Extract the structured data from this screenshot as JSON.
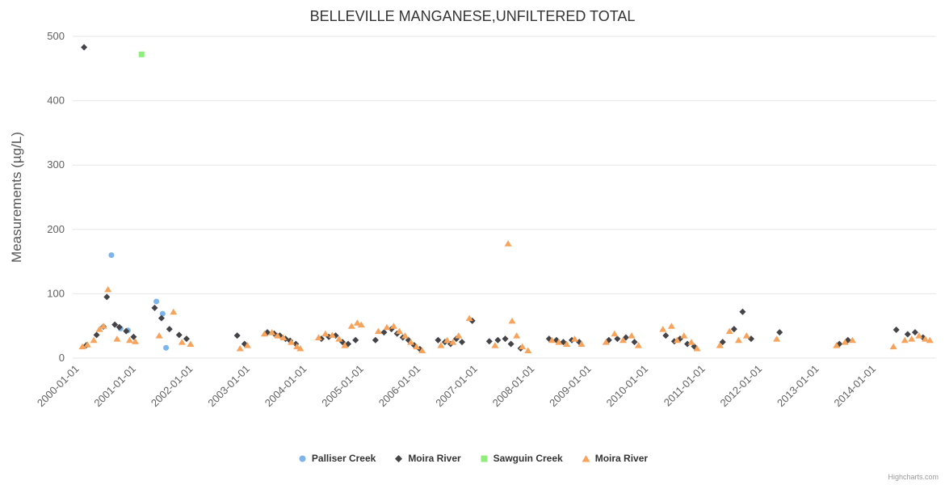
{
  "title": "BELLEVILLE MANGANESE,UNFILTERED TOTAL",
  "credits": "Highcharts.com",
  "yAxis": {
    "title": "Measurements (µg/L)",
    "ticks": [
      0,
      100,
      200,
      300,
      400,
      500
    ]
  },
  "xAxis": {
    "tick_labels": [
      "2000-01-01",
      "2001-01-01",
      "2002-01-01",
      "2003-01-01",
      "2004-01-01",
      "2005-01-01",
      "2006-01-01",
      "2007-01-01",
      "2008-01-01",
      "2009-01-01",
      "2010-01-01",
      "2011-01-01",
      "2012-01-01",
      "2013-01-01",
      "2014-01-01"
    ]
  },
  "colors": {
    "grid": "#e6e6e6",
    "axis_label": "#606060",
    "title_text": "#333333",
    "axis_title_text": "#555555",
    "legend_text": "#333333",
    "credits_text": "#999999"
  },
  "chart_data": {
    "type": "scatter",
    "title": "BELLEVILLE MANGANESE,UNFILTERED TOTAL",
    "xlabel": "",
    "ylabel": "Measurements (µg/L)",
    "ylim": [
      0,
      500
    ],
    "xlim": [
      1999.88,
      2015.05
    ],
    "grid": "horizontal-only",
    "legend_position": "bottom",
    "x_unit": "decimal-year",
    "series": [
      {
        "name": "Palliser Creek",
        "marker": "circle",
        "color": "#7cb5ec",
        "points": [
          [
            2000.56,
            160
          ],
          [
            2000.72,
            46
          ],
          [
            2000.85,
            43
          ],
          [
            2001.35,
            88
          ],
          [
            2001.46,
            69
          ],
          [
            2001.52,
            16
          ]
        ]
      },
      {
        "name": "Moira River",
        "marker": "diamond",
        "color": "#434348",
        "points": [
          [
            2000.08,
            483
          ],
          [
            2000.12,
            20
          ],
          [
            2000.3,
            36
          ],
          [
            2000.42,
            49
          ],
          [
            2000.48,
            95
          ],
          [
            2000.62,
            52
          ],
          [
            2000.7,
            48
          ],
          [
            2000.82,
            42
          ],
          [
            2000.95,
            33
          ],
          [
            2001.32,
            78
          ],
          [
            2001.44,
            62
          ],
          [
            2001.58,
            45
          ],
          [
            2001.75,
            36
          ],
          [
            2001.88,
            30
          ],
          [
            2002.77,
            35
          ],
          [
            2002.9,
            22
          ],
          [
            2003.3,
            40
          ],
          [
            2003.42,
            38
          ],
          [
            2003.52,
            35
          ],
          [
            2003.62,
            30
          ],
          [
            2003.7,
            27
          ],
          [
            2003.8,
            22
          ],
          [
            2004.25,
            30
          ],
          [
            2004.38,
            33
          ],
          [
            2004.5,
            35
          ],
          [
            2004.62,
            25
          ],
          [
            2004.72,
            22
          ],
          [
            2004.85,
            28
          ],
          [
            2005.2,
            28
          ],
          [
            2005.35,
            40
          ],
          [
            2005.48,
            45
          ],
          [
            2005.58,
            38
          ],
          [
            2005.68,
            32
          ],
          [
            2005.78,
            28
          ],
          [
            2005.88,
            20
          ],
          [
            2005.98,
            14
          ],
          [
            2006.3,
            28
          ],
          [
            2006.42,
            25
          ],
          [
            2006.52,
            22
          ],
          [
            2006.62,
            30
          ],
          [
            2006.72,
            25
          ],
          [
            2006.9,
            58
          ],
          [
            2007.2,
            26
          ],
          [
            2007.35,
            28
          ],
          [
            2007.48,
            30
          ],
          [
            2007.58,
            22
          ],
          [
            2007.75,
            15
          ],
          [
            2008.25,
            30
          ],
          [
            2008.38,
            28
          ],
          [
            2008.5,
            25
          ],
          [
            2008.65,
            28
          ],
          [
            2008.78,
            25
          ],
          [
            2009.3,
            28
          ],
          [
            2009.45,
            30
          ],
          [
            2009.6,
            32
          ],
          [
            2009.75,
            25
          ],
          [
            2010.3,
            35
          ],
          [
            2010.45,
            26
          ],
          [
            2010.55,
            30
          ],
          [
            2010.68,
            22
          ],
          [
            2010.8,
            18
          ],
          [
            2011.3,
            25
          ],
          [
            2011.5,
            45
          ],
          [
            2011.65,
            72
          ],
          [
            2011.8,
            30
          ],
          [
            2012.3,
            40
          ],
          [
            2013.35,
            22
          ],
          [
            2013.5,
            28
          ],
          [
            2014.35,
            44
          ],
          [
            2014.55,
            37
          ],
          [
            2014.68,
            40
          ],
          [
            2014.82,
            32
          ]
        ]
      },
      {
        "name": "Sawguin Creek",
        "marker": "square",
        "color": "#90ed7d",
        "points": [
          [
            2001.09,
            472
          ]
        ]
      },
      {
        "name": "Moira River",
        "marker": "triangle",
        "color": "#f7a35c",
        "points": [
          [
            2000.05,
            18
          ],
          [
            2000.14,
            21
          ],
          [
            2000.25,
            28
          ],
          [
            2000.35,
            45
          ],
          [
            2000.42,
            50
          ],
          [
            2000.5,
            107
          ],
          [
            2000.66,
            30
          ],
          [
            2000.88,
            28
          ],
          [
            2000.98,
            26
          ],
          [
            2001.4,
            35
          ],
          [
            2001.65,
            72
          ],
          [
            2001.8,
            25
          ],
          [
            2001.95,
            22
          ],
          [
            2002.82,
            15
          ],
          [
            2002.95,
            20
          ],
          [
            2003.25,
            38
          ],
          [
            2003.38,
            40
          ],
          [
            2003.48,
            35
          ],
          [
            2003.58,
            32
          ],
          [
            2003.72,
            25
          ],
          [
            2003.82,
            18
          ],
          [
            2003.88,
            15
          ],
          [
            2004.2,
            32
          ],
          [
            2004.32,
            38
          ],
          [
            2004.44,
            36
          ],
          [
            2004.56,
            30
          ],
          [
            2004.66,
            20
          ],
          [
            2004.78,
            50
          ],
          [
            2004.88,
            55
          ],
          [
            2004.95,
            52
          ],
          [
            2005.25,
            42
          ],
          [
            2005.4,
            48
          ],
          [
            2005.52,
            50
          ],
          [
            2005.62,
            42
          ],
          [
            2005.72,
            35
          ],
          [
            2005.82,
            25
          ],
          [
            2005.92,
            18
          ],
          [
            2006.02,
            12
          ],
          [
            2006.35,
            20
          ],
          [
            2006.46,
            28
          ],
          [
            2006.56,
            25
          ],
          [
            2006.66,
            35
          ],
          [
            2006.85,
            62
          ],
          [
            2007.3,
            20
          ],
          [
            2007.53,
            178
          ],
          [
            2007.6,
            58
          ],
          [
            2007.68,
            35
          ],
          [
            2007.78,
            18
          ],
          [
            2007.88,
            12
          ],
          [
            2008.3,
            28
          ],
          [
            2008.42,
            25
          ],
          [
            2008.56,
            22
          ],
          [
            2008.7,
            30
          ],
          [
            2008.82,
            22
          ],
          [
            2009.25,
            25
          ],
          [
            2009.4,
            38
          ],
          [
            2009.55,
            28
          ],
          [
            2009.7,
            35
          ],
          [
            2009.82,
            20
          ],
          [
            2010.25,
            45
          ],
          [
            2010.4,
            50
          ],
          [
            2010.5,
            28
          ],
          [
            2010.62,
            35
          ],
          [
            2010.75,
            25
          ],
          [
            2010.85,
            15
          ],
          [
            2011.25,
            20
          ],
          [
            2011.42,
            42
          ],
          [
            2011.58,
            28
          ],
          [
            2011.72,
            35
          ],
          [
            2012.25,
            30
          ],
          [
            2013.3,
            20
          ],
          [
            2013.45,
            25
          ],
          [
            2013.58,
            28
          ],
          [
            2014.3,
            18
          ],
          [
            2014.5,
            28
          ],
          [
            2014.62,
            30
          ],
          [
            2014.75,
            35
          ],
          [
            2014.86,
            30
          ],
          [
            2014.94,
            28
          ]
        ]
      }
    ]
  }
}
